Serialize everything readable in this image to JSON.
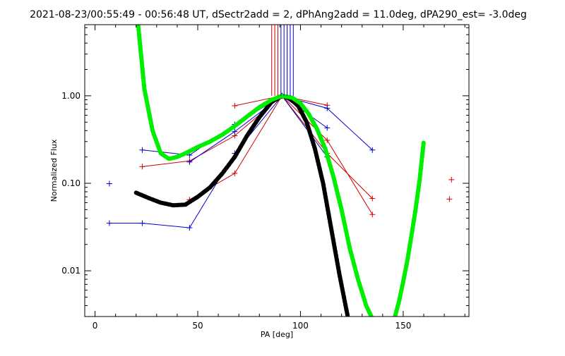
{
  "chart_data": {
    "type": "line",
    "title": "2021-08-23/00:55:49 - 00:56:48 UT, dSectr2add = 2, dPhAng2add = 11.0deg, dPA290_est= -3.0deg",
    "xlabel": "PA [deg]",
    "ylabel": "Normalized Flux",
    "xlim": [
      -5,
      182
    ],
    "ylim": [
      0.003,
      6.5
    ],
    "y_scale": "log",
    "grid": false,
    "x_ticks": [
      0,
      50,
      100,
      150
    ],
    "x_tick_labels": [
      "0",
      "50",
      "100",
      "150"
    ],
    "y_ticks": [
      0.01,
      0.1,
      1.0
    ],
    "y_tick_labels": [
      "0.01",
      "0.10",
      "1.00"
    ],
    "colors": {
      "red": "#d00000",
      "blue": "#0000cc",
      "green": "#00ee00",
      "black": "#000000"
    },
    "series": [
      {
        "color": "red",
        "style": "line-plus",
        "x": [
          23,
          46,
          68,
          91,
          113,
          135
        ],
        "y": [
          0.155,
          0.18,
          0.35,
          1.0,
          0.22,
          0.067
        ]
      },
      {
        "color": "red",
        "style": "line-plus",
        "x": [
          46,
          68,
          91,
          113,
          135
        ],
        "y": [
          0.065,
          0.13,
          1.0,
          0.31,
          0.044
        ]
      },
      {
        "color": "red",
        "style": "line-plus",
        "x": [
          68,
          91,
          113
        ],
        "y": [
          0.77,
          1.0,
          0.78
        ]
      },
      {
        "color": "blue",
        "style": "line-plus",
        "x": [
          23,
          46,
          68,
          91,
          113,
          135
        ],
        "y": [
          0.24,
          0.21,
          0.47,
          1.0,
          0.72,
          0.24
        ]
      },
      {
        "color": "blue",
        "style": "line-plus",
        "x": [
          7,
          23,
          46,
          68,
          91,
          113
        ],
        "y": [
          0.035,
          0.035,
          0.031,
          0.22,
          1.0,
          0.2
        ]
      },
      {
        "color": "blue",
        "style": "line-plus",
        "x": [
          46,
          68,
          91,
          113
        ],
        "y": [
          0.175,
          0.39,
          1.0,
          0.43
        ]
      },
      {
        "color": "black",
        "style": "thick-dashed",
        "x": [
          20,
          26,
          32,
          38,
          44,
          50,
          56,
          62,
          68,
          74,
          80,
          86,
          91,
          95,
          99,
          103,
          107,
          111,
          115,
          119,
          123
        ],
        "y": [
          0.078,
          0.068,
          0.06,
          0.056,
          0.057,
          0.07,
          0.09,
          0.13,
          0.2,
          0.35,
          0.57,
          0.85,
          1.0,
          0.93,
          0.76,
          0.5,
          0.25,
          0.1,
          0.03,
          0.009,
          0.003
        ]
      },
      {
        "color": "green",
        "style": "thick-dashed",
        "x": [
          21,
          24,
          28,
          32,
          36,
          40,
          44,
          50,
          56,
          62,
          68,
          74,
          80,
          86,
          91,
          96,
          100,
          104,
          108,
          112,
          116,
          120,
          124,
          128,
          132,
          134.5
        ],
        "y": [
          6.5,
          1.2,
          0.4,
          0.22,
          0.19,
          0.2,
          0.22,
          0.26,
          0.3,
          0.36,
          0.45,
          0.58,
          0.74,
          0.9,
          1.0,
          0.95,
          0.82,
          0.62,
          0.42,
          0.25,
          0.12,
          0.05,
          0.018,
          0.008,
          0.004,
          0.003
        ]
      },
      {
        "color": "green",
        "style": "thick-dashed",
        "x": [
          146,
          148,
          150,
          152,
          154,
          156,
          158,
          160
        ],
        "y": [
          0.003,
          0.0045,
          0.0075,
          0.013,
          0.025,
          0.05,
          0.11,
          0.3
        ]
      },
      {
        "color": "blue",
        "style": "plus-only",
        "x": [
          7
        ],
        "y": [
          0.099
        ]
      },
      {
        "color": "red",
        "style": "plus-only",
        "x": [
          172.5,
          173.5
        ],
        "y": [
          0.066,
          0.11
        ]
      },
      {
        "color": "red",
        "style": "vertical-marker",
        "x": [
          86,
          87.5,
          89
        ],
        "y_from": 1.0,
        "y_to": 6.5
      },
      {
        "color": "blue",
        "style": "vertical-marker",
        "x": [
          90.5,
          92,
          93.5,
          95,
          96.5
        ],
        "y_from": 1.0,
        "y_to": 6.5
      }
    ]
  }
}
